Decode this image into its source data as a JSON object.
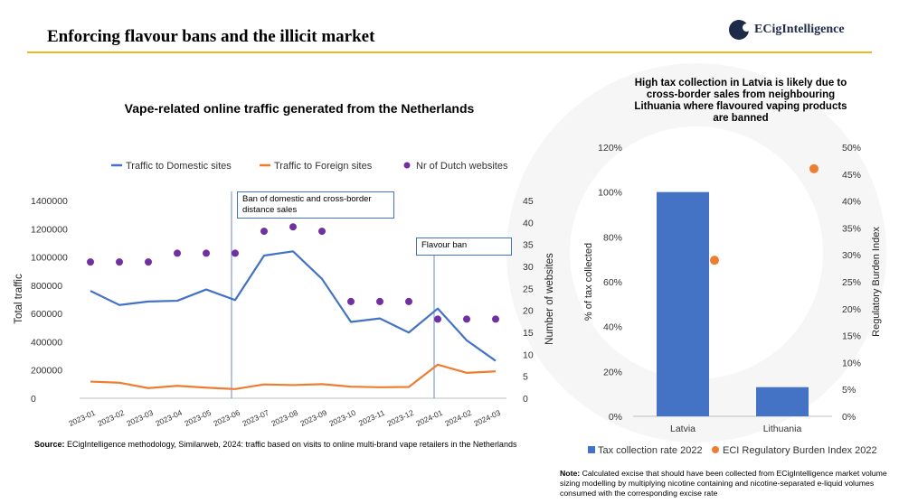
{
  "header": {
    "title": "Enforcing flavour bans and the illicit market",
    "logo_text": "ECigIntelligence"
  },
  "left_chart_title": "Vape-related online traffic generated from the Netherlands",
  "right_chart_title": "High tax collection in Latvia is likely due to cross-border sales from neighbouring Lithuania where flavoured vaping products are banned",
  "annotations": {
    "ban": "Ban of domestic and cross-border distance sales",
    "flavour_ban": "Flavour ban"
  },
  "source": {
    "label": "Source:",
    "text": " ECigIntelligence methodology, Similarweb, 2024: traffic based on visits to online multi-brand vape retailers in the Netherlands"
  },
  "note": {
    "label": "Note:",
    "text": " Calculated excise that should have been collected from ECigIntelligence market volume sizing modelling by multiplying nicotine containing and nicotine-separated e-liquid volumes consumed with the corresponding excise rate"
  },
  "chart_data": [
    {
      "type": "line",
      "categories": [
        "2023-01",
        "2023-02",
        "2023-03",
        "2023-04",
        "2023-05",
        "2023-06",
        "2023-07",
        "2023-08",
        "2023-09",
        "2023-10",
        "2023-11",
        "2023-12",
        "2024-01",
        "2024-02",
        "2024-03"
      ],
      "series": [
        {
          "name": "Traffic to Domestic sites",
          "axis": "left",
          "color": "#4472c4",
          "values": [
            760000,
            660000,
            685000,
            690000,
            770000,
            695000,
            1010000,
            1040000,
            845000,
            540000,
            565000,
            465000,
            635000,
            410000,
            265000
          ]
        },
        {
          "name": "Traffic to Foreign sites",
          "axis": "left",
          "color": "#ed7d31",
          "values": [
            118000,
            110000,
            72000,
            88000,
            75000,
            65000,
            98000,
            93000,
            100000,
            82000,
            78000,
            80000,
            238000,
            180000,
            190000
          ]
        },
        {
          "name": "Nr of Dutch websites",
          "axis": "right",
          "type": "scatter",
          "color": "#7030a0",
          "values": [
            31,
            31,
            31,
            33,
            33,
            33,
            38,
            39,
            38,
            22,
            22,
            22,
            18,
            18,
            18
          ]
        }
      ],
      "ylabel": "Total traffic",
      "ylabel_right": "Number of websites",
      "y_ticks": [
        "0",
        "200000",
        "400000",
        "600000",
        "800000",
        "1000000",
        "1200000",
        "1400000"
      ],
      "y2_ticks": [
        "0",
        "5",
        "10",
        "15",
        "20",
        "25",
        "30",
        "35",
        "40",
        "45"
      ],
      "ylim": [
        0,
        1400000
      ],
      "y2lim": [
        0,
        45
      ],
      "legend": "top",
      "grid": false
    },
    {
      "type": "bar",
      "categories": [
        "Latvia",
        "Lithuania"
      ],
      "series": [
        {
          "name": "Tax collection rate 2022",
          "axis": "left",
          "type": "bar",
          "color": "#4472c4",
          "values": [
            100,
            13
          ]
        },
        {
          "name": "ECI Regulatory Burden Index 2022",
          "axis": "right",
          "type": "scatter",
          "color": "#ed7d31",
          "values": [
            29,
            46
          ]
        }
      ],
      "ylabel": "% of tax collected",
      "ylabel_right": "Regulatory Burden Index",
      "y_ticks": [
        "0%",
        "20%",
        "40%",
        "60%",
        "80%",
        "100%",
        "120%"
      ],
      "y2_ticks": [
        "0%",
        "5%",
        "10%",
        "15%",
        "20%",
        "25%",
        "30%",
        "35%",
        "40%",
        "45%",
        "50%"
      ],
      "ylim": [
        0,
        120
      ],
      "y2lim": [
        0,
        50
      ],
      "legend": "bottom",
      "grid": false
    }
  ]
}
